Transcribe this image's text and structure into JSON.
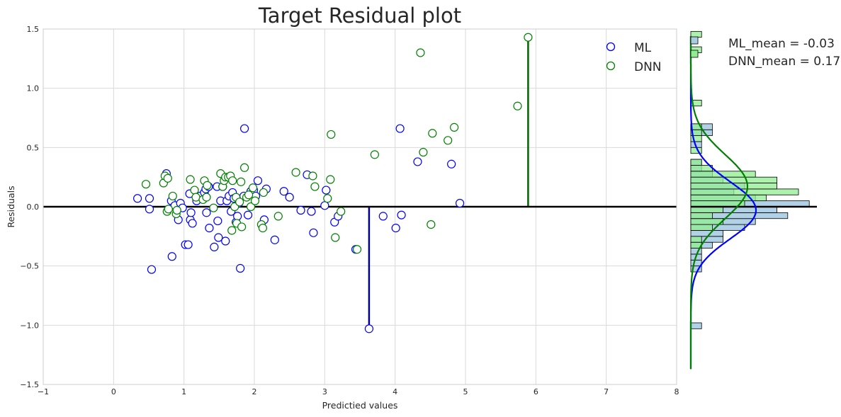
{
  "chart_data": {
    "type": "scatter",
    "title": "Target Residual plot",
    "xlabel": "Predictied values",
    "ylabel": "Residuals",
    "xlim": [
      -1,
      8
    ],
    "ylim": [
      -1.5,
      1.5
    ],
    "xticks": [
      -1,
      0,
      1,
      2,
      3,
      4,
      5,
      6,
      7,
      8
    ],
    "yticks": [
      -1.5,
      -1.0,
      -0.5,
      0.0,
      0.5,
      1.0,
      1.5
    ],
    "xtick_labels": [
      "−1",
      "0",
      "1",
      "2",
      "3",
      "4",
      "5",
      "6",
      "7",
      "8"
    ],
    "ytick_labels": [
      "−1.5",
      "−1.0",
      "−0.5",
      "0.0",
      "0.5",
      "1.0",
      "1.5"
    ],
    "grid": true,
    "legend_position": "top-right",
    "zero_line": 0,
    "series": [
      {
        "name": "ML",
        "color": "#0000ff",
        "points": [
          [
            0.34,
            0.07
          ],
          [
            0.51,
            0.07
          ],
          [
            0.51,
            -0.02
          ],
          [
            0.54,
            -0.53
          ],
          [
            0.75,
            0.28
          ],
          [
            0.82,
            0.05
          ],
          [
            0.83,
            -0.42
          ],
          [
            0.87,
            0.01
          ],
          [
            0.92,
            -0.11
          ],
          [
            0.95,
            0.03
          ],
          [
            0.98,
            -0.01
          ],
          [
            1.02,
            -0.32
          ],
          [
            1.06,
            -0.32
          ],
          [
            1.08,
            0.11
          ],
          [
            1.09,
            -0.11
          ],
          [
            1.1,
            -0.05
          ],
          [
            1.12,
            -0.14
          ],
          [
            1.18,
            0.05
          ],
          [
            1.23,
            0.09
          ],
          [
            1.29,
            0.12
          ],
          [
            1.31,
            0.15
          ],
          [
            1.32,
            -0.05
          ],
          [
            1.35,
            0.17
          ],
          [
            1.36,
            -0.18
          ],
          [
            1.43,
            -0.34
          ],
          [
            1.47,
            0.17
          ],
          [
            1.48,
            -0.12
          ],
          [
            1.49,
            -0.26
          ],
          [
            1.52,
            0.05
          ],
          [
            1.55,
            0.17
          ],
          [
            1.59,
            -0.29
          ],
          [
            1.61,
            0.05
          ],
          [
            1.64,
            0.09
          ],
          [
            1.67,
            -0.04
          ],
          [
            1.69,
            0.12
          ],
          [
            1.71,
            0.07
          ],
          [
            1.74,
            -0.13
          ],
          [
            1.76,
            -0.08
          ],
          [
            1.78,
            0.03
          ],
          [
            1.8,
            -0.52
          ],
          [
            1.85,
            0.09
          ],
          [
            1.86,
            0.66
          ],
          [
            1.91,
            -0.07
          ],
          [
            1.95,
            0.13
          ],
          [
            1.99,
            0.14
          ],
          [
            2.02,
            0.09
          ],
          [
            2.05,
            0.22
          ],
          [
            2.14,
            -0.11
          ],
          [
            2.17,
            0.15
          ],
          [
            2.29,
            -0.28
          ],
          [
            2.42,
            0.13
          ],
          [
            2.5,
            0.08
          ],
          [
            2.66,
            -0.03
          ],
          [
            2.75,
            0.27
          ],
          [
            2.81,
            -0.04
          ],
          [
            2.84,
            -0.22
          ],
          [
            3.0,
            0.01
          ],
          [
            3.02,
            0.14
          ],
          [
            3.14,
            -0.13
          ],
          [
            3.19,
            -0.08
          ],
          [
            3.44,
            -0.36
          ],
          [
            3.63,
            -1.03
          ],
          [
            3.83,
            -0.08
          ],
          [
            4.01,
            -0.18
          ],
          [
            4.07,
            0.66
          ],
          [
            4.09,
            -0.07
          ],
          [
            4.32,
            0.38
          ],
          [
            4.8,
            0.36
          ],
          [
            4.92,
            0.03
          ]
        ]
      },
      {
        "name": "DNN",
        "color": "#008000",
        "points": [
          [
            0.46,
            0.19
          ],
          [
            0.71,
            0.2
          ],
          [
            0.73,
            0.26
          ],
          [
            0.76,
            -0.04
          ],
          [
            0.77,
            0.24
          ],
          [
            0.78,
            -0.02
          ],
          [
            0.84,
            0.09
          ],
          [
            0.89,
            -0.06
          ],
          [
            0.9,
            -0.03
          ],
          [
            1.09,
            0.23
          ],
          [
            1.15,
            0.14
          ],
          [
            1.17,
            0.08
          ],
          [
            1.27,
            0.06
          ],
          [
            1.29,
            0.22
          ],
          [
            1.32,
            0.08
          ],
          [
            1.33,
            0.18
          ],
          [
            1.42,
            -0.01
          ],
          [
            1.52,
            0.28
          ],
          [
            1.55,
            0.17
          ],
          [
            1.57,
            0.22
          ],
          [
            1.59,
            0.25
          ],
          [
            1.63,
            0.25
          ],
          [
            1.66,
            0.26
          ],
          [
            1.68,
            -0.2
          ],
          [
            1.69,
            0.22
          ],
          [
            1.72,
            0.0
          ],
          [
            1.74,
            0.08
          ],
          [
            1.75,
            -0.14
          ],
          [
            1.79,
            0.04
          ],
          [
            1.81,
            0.21
          ],
          [
            1.82,
            -0.17
          ],
          [
            1.86,
            0.33
          ],
          [
            1.89,
            0.08
          ],
          [
            1.92,
            0.1
          ],
          [
            1.95,
            0.0
          ],
          [
            1.98,
            0.16
          ],
          [
            2.01,
            0.05
          ],
          [
            2.1,
            -0.15
          ],
          [
            2.12,
            -0.18
          ],
          [
            2.13,
            0.12
          ],
          [
            2.34,
            -0.08
          ],
          [
            2.59,
            0.29
          ],
          [
            2.83,
            0.26
          ],
          [
            2.86,
            0.17
          ],
          [
            3.04,
            0.07
          ],
          [
            3.08,
            0.23
          ],
          [
            3.09,
            0.61
          ],
          [
            3.15,
            -0.26
          ],
          [
            3.23,
            -0.04
          ],
          [
            3.46,
            -0.36
          ],
          [
            3.71,
            0.44
          ],
          [
            4.36,
            1.3
          ],
          [
            4.4,
            0.46
          ],
          [
            4.51,
            -0.15
          ],
          [
            4.53,
            0.62
          ],
          [
            4.75,
            0.56
          ],
          [
            4.84,
            0.67
          ],
          [
            5.74,
            0.85
          ],
          [
            5.89,
            1.43
          ]
        ]
      }
    ],
    "vertical_stems": [
      {
        "series": "ML",
        "x": 3.63,
        "y": -1.03,
        "color": "#00008b"
      },
      {
        "series": "DNN",
        "x": 5.89,
        "y": 1.43,
        "color": "#006400"
      }
    ],
    "marginal": {
      "type": "histogram+kde",
      "orientation": "horizontal",
      "ML": {
        "label": "ML_mean = -0.03",
        "fill": "#a9cce3",
        "line_color": "#0000ff",
        "kde_mean": -0.03,
        "kde_sd": 0.24,
        "bins": [
          [
            -1.03,
            1
          ],
          [
            -0.55,
            1
          ],
          [
            -0.5,
            1
          ],
          [
            -0.45,
            1
          ],
          [
            -0.4,
            1
          ],
          [
            -0.35,
            2
          ],
          [
            -0.3,
            3
          ],
          [
            -0.25,
            3
          ],
          [
            -0.2,
            5
          ],
          [
            -0.15,
            6
          ],
          [
            -0.1,
            9
          ],
          [
            -0.05,
            8
          ],
          [
            0.0,
            11
          ],
          [
            0.05,
            6
          ],
          [
            0.1,
            4
          ],
          [
            0.15,
            5
          ],
          [
            0.2,
            3
          ],
          [
            0.25,
            2
          ],
          [
            0.3,
            1
          ],
          [
            0.35,
            1
          ],
          [
            0.5,
            1
          ],
          [
            0.6,
            2
          ],
          [
            0.65,
            2
          ]
        ]
      },
      "DNN": {
        "label": "DNN_mean = 0.17",
        "fill": "#90ee90",
        "line_color": "#008000",
        "kde_mean": 0.17,
        "kde_sd": 0.27,
        "bins": [
          [
            -0.35,
            1
          ],
          [
            -0.3,
            1
          ],
          [
            -0.2,
            2
          ],
          [
            -0.15,
            3
          ],
          [
            -0.1,
            2
          ],
          [
            -0.05,
            3
          ],
          [
            0.0,
            5
          ],
          [
            0.05,
            7
          ],
          [
            0.1,
            10
          ],
          [
            0.15,
            8
          ],
          [
            0.2,
            8
          ],
          [
            0.25,
            6
          ],
          [
            0.3,
            2
          ],
          [
            0.35,
            1
          ],
          [
            0.45,
            1
          ],
          [
            0.55,
            1
          ],
          [
            0.6,
            1
          ],
          [
            0.65,
            1
          ],
          [
            0.85,
            1
          ],
          [
            1.3,
            1
          ],
          [
            1.43,
            1
          ]
        ]
      }
    }
  }
}
